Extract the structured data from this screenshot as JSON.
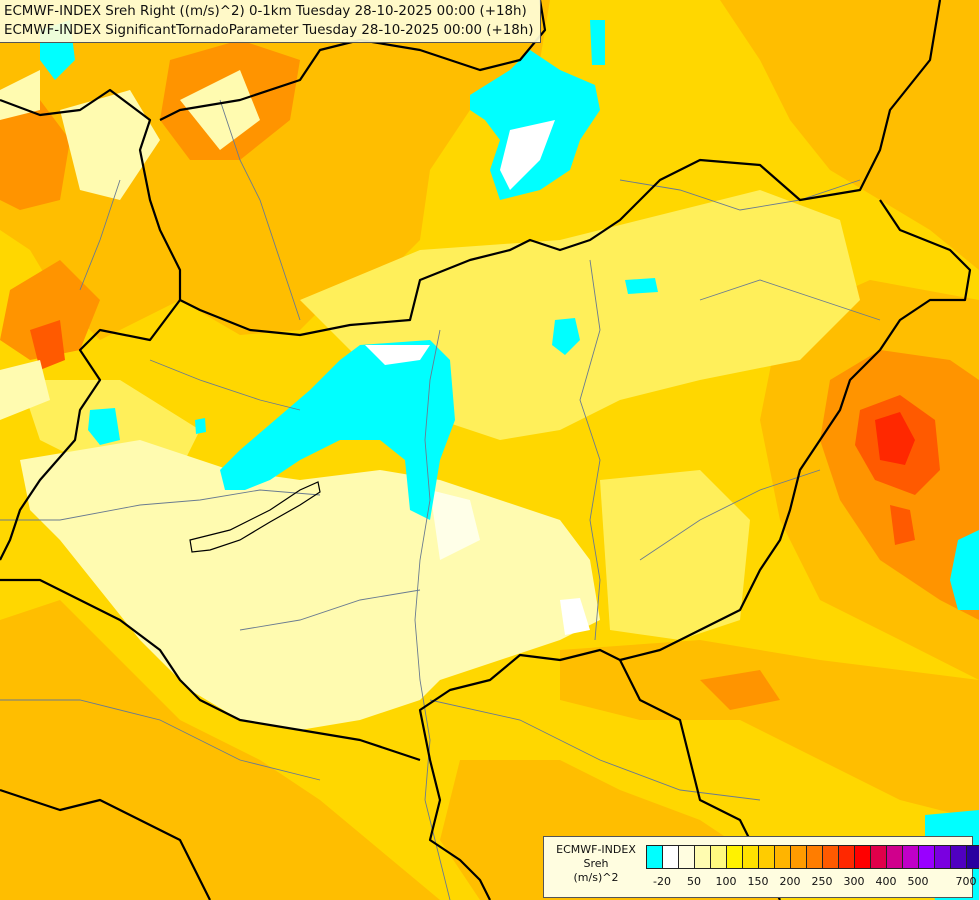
{
  "header": {
    "line1": "ECMWF-INDEX Sreh Right ((m/s)^2) 0-1km Tuesday 28-10-2025 00:00 (+18h)",
    "line2": "ECMWF-INDEX SignificantTornadoParameter Tuesday 28-10-2025 00:00 (+18h)"
  },
  "legend": {
    "title_line1": "ECMWF-INDEX",
    "title_line2": "Sreh",
    "title_line3": "(m/s)^2",
    "colors": [
      "#00ffff",
      "#ffffff",
      "#fffde0",
      "#fffcb0",
      "#fffa80",
      "#fff200",
      "#ffe100",
      "#ffcc00",
      "#ffb400",
      "#ff9b00",
      "#ff7d00",
      "#ff5a00",
      "#ff2800",
      "#ff0000",
      "#e0004a",
      "#d0008c",
      "#c000c8",
      "#9900ff",
      "#7a00e0",
      "#5000c0",
      "#2a00a0",
      "#000080"
    ],
    "ticks": [
      "-20",
      "50",
      "100",
      "150",
      "200",
      "250",
      "300",
      "400",
      "500",
      "700"
    ]
  },
  "palette": {
    "field_background": "#ffd700",
    "land_pale": "#fffbb0",
    "land_lightyellow": "#ffef5a",
    "land_orange": "#ffbe00",
    "land_darkorange": "#ff9400",
    "land_red": "#ff4a00",
    "cyan": "#00ffff",
    "border": "#000000",
    "rivers": "#6a7b90"
  }
}
